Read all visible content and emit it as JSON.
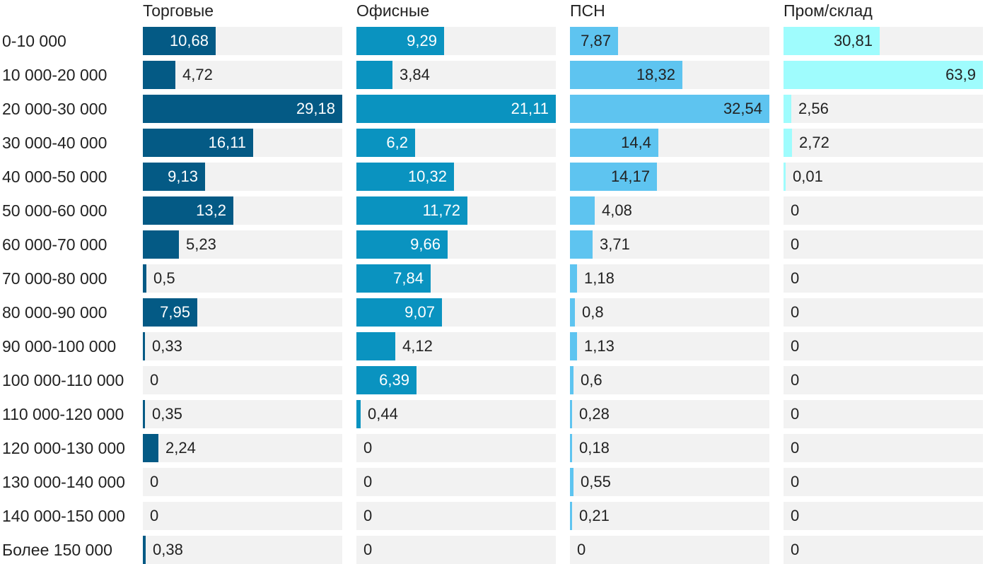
{
  "chart_data": {
    "type": "bar",
    "title": "",
    "xlabel": "",
    "ylabel": "",
    "categories": [
      "0-10 000",
      "10 000-20 000",
      "20 000-30 000",
      "30 000-40 000",
      "40 000-50 000",
      "50 000-60 000",
      "60 000-70 000",
      "70 000-80 000",
      "80 000-90 000",
      "90 000-100 000",
      "100 000-110 000",
      "110 000-120 000",
      "120 000-130 000",
      "130 000-140 000",
      "140 000-150 000",
      "Более 150 000"
    ],
    "series": [
      {
        "name": "Торговые",
        "color": "#045a85",
        "values": [
          10.68,
          4.72,
          29.18,
          16.11,
          9.13,
          13.2,
          5.23,
          0.5,
          7.95,
          0.33,
          0,
          0.35,
          2.24,
          0,
          0,
          0.38
        ],
        "labels": [
          "10,68",
          "4,72",
          "29,18",
          "16,11",
          "9,13",
          "13,2",
          "5,23",
          "0,5",
          "7,95",
          "0,33",
          "0",
          "0,35",
          "2,24",
          "0",
          "0",
          "0,38"
        ],
        "max": 29.18,
        "label_inside_color": "#ffffff"
      },
      {
        "name": "Офисные",
        "color": "#0a93c0",
        "values": [
          9.29,
          3.84,
          21.11,
          6.2,
          10.32,
          11.72,
          9.66,
          7.84,
          9.07,
          4.12,
          6.39,
          0.44,
          0,
          0,
          0,
          0
        ],
        "labels": [
          "9,29",
          "3,84",
          "21,11",
          "6,2",
          "10,32",
          "11,72",
          "9,66",
          "7,84",
          "9,07",
          "4,12",
          "6,39",
          "0,44",
          "0",
          "0",
          "0",
          "0"
        ],
        "max": 21.11,
        "label_inside_color": "#ffffff"
      },
      {
        "name": "ПСН",
        "color": "#5ec4f0",
        "values": [
          7.87,
          18.32,
          32.54,
          14.4,
          14.17,
          4.08,
          3.71,
          1.18,
          0.8,
          1.13,
          0.6,
          0.28,
          0.18,
          0.55,
          0.21,
          0
        ],
        "labels": [
          "7,87",
          "18,32",
          "32,54",
          "14,4",
          "14,17",
          "4,08",
          "3,71",
          "1,18",
          "0,8",
          "1,13",
          "0,6",
          "0,28",
          "0,18",
          "0,55",
          "0,21",
          "0"
        ],
        "max": 32.54,
        "label_inside_color": "#222222"
      },
      {
        "name": "Пром/склад",
        "color": "#9ffcfd",
        "values": [
          30.81,
          63.9,
          2.56,
          2.72,
          0.01,
          0,
          0,
          0,
          0,
          0,
          0,
          0,
          0,
          0,
          0,
          0
        ],
        "labels": [
          "30,81",
          "63,9",
          "2,56",
          "2,72",
          "0,01",
          "0",
          "0",
          "0",
          "0",
          "0",
          "0",
          "0",
          "0",
          "0",
          "0",
          "0"
        ],
        "max": 63.9,
        "label_inside_color": "#222222"
      }
    ],
    "legend": "none",
    "grid": false
  }
}
